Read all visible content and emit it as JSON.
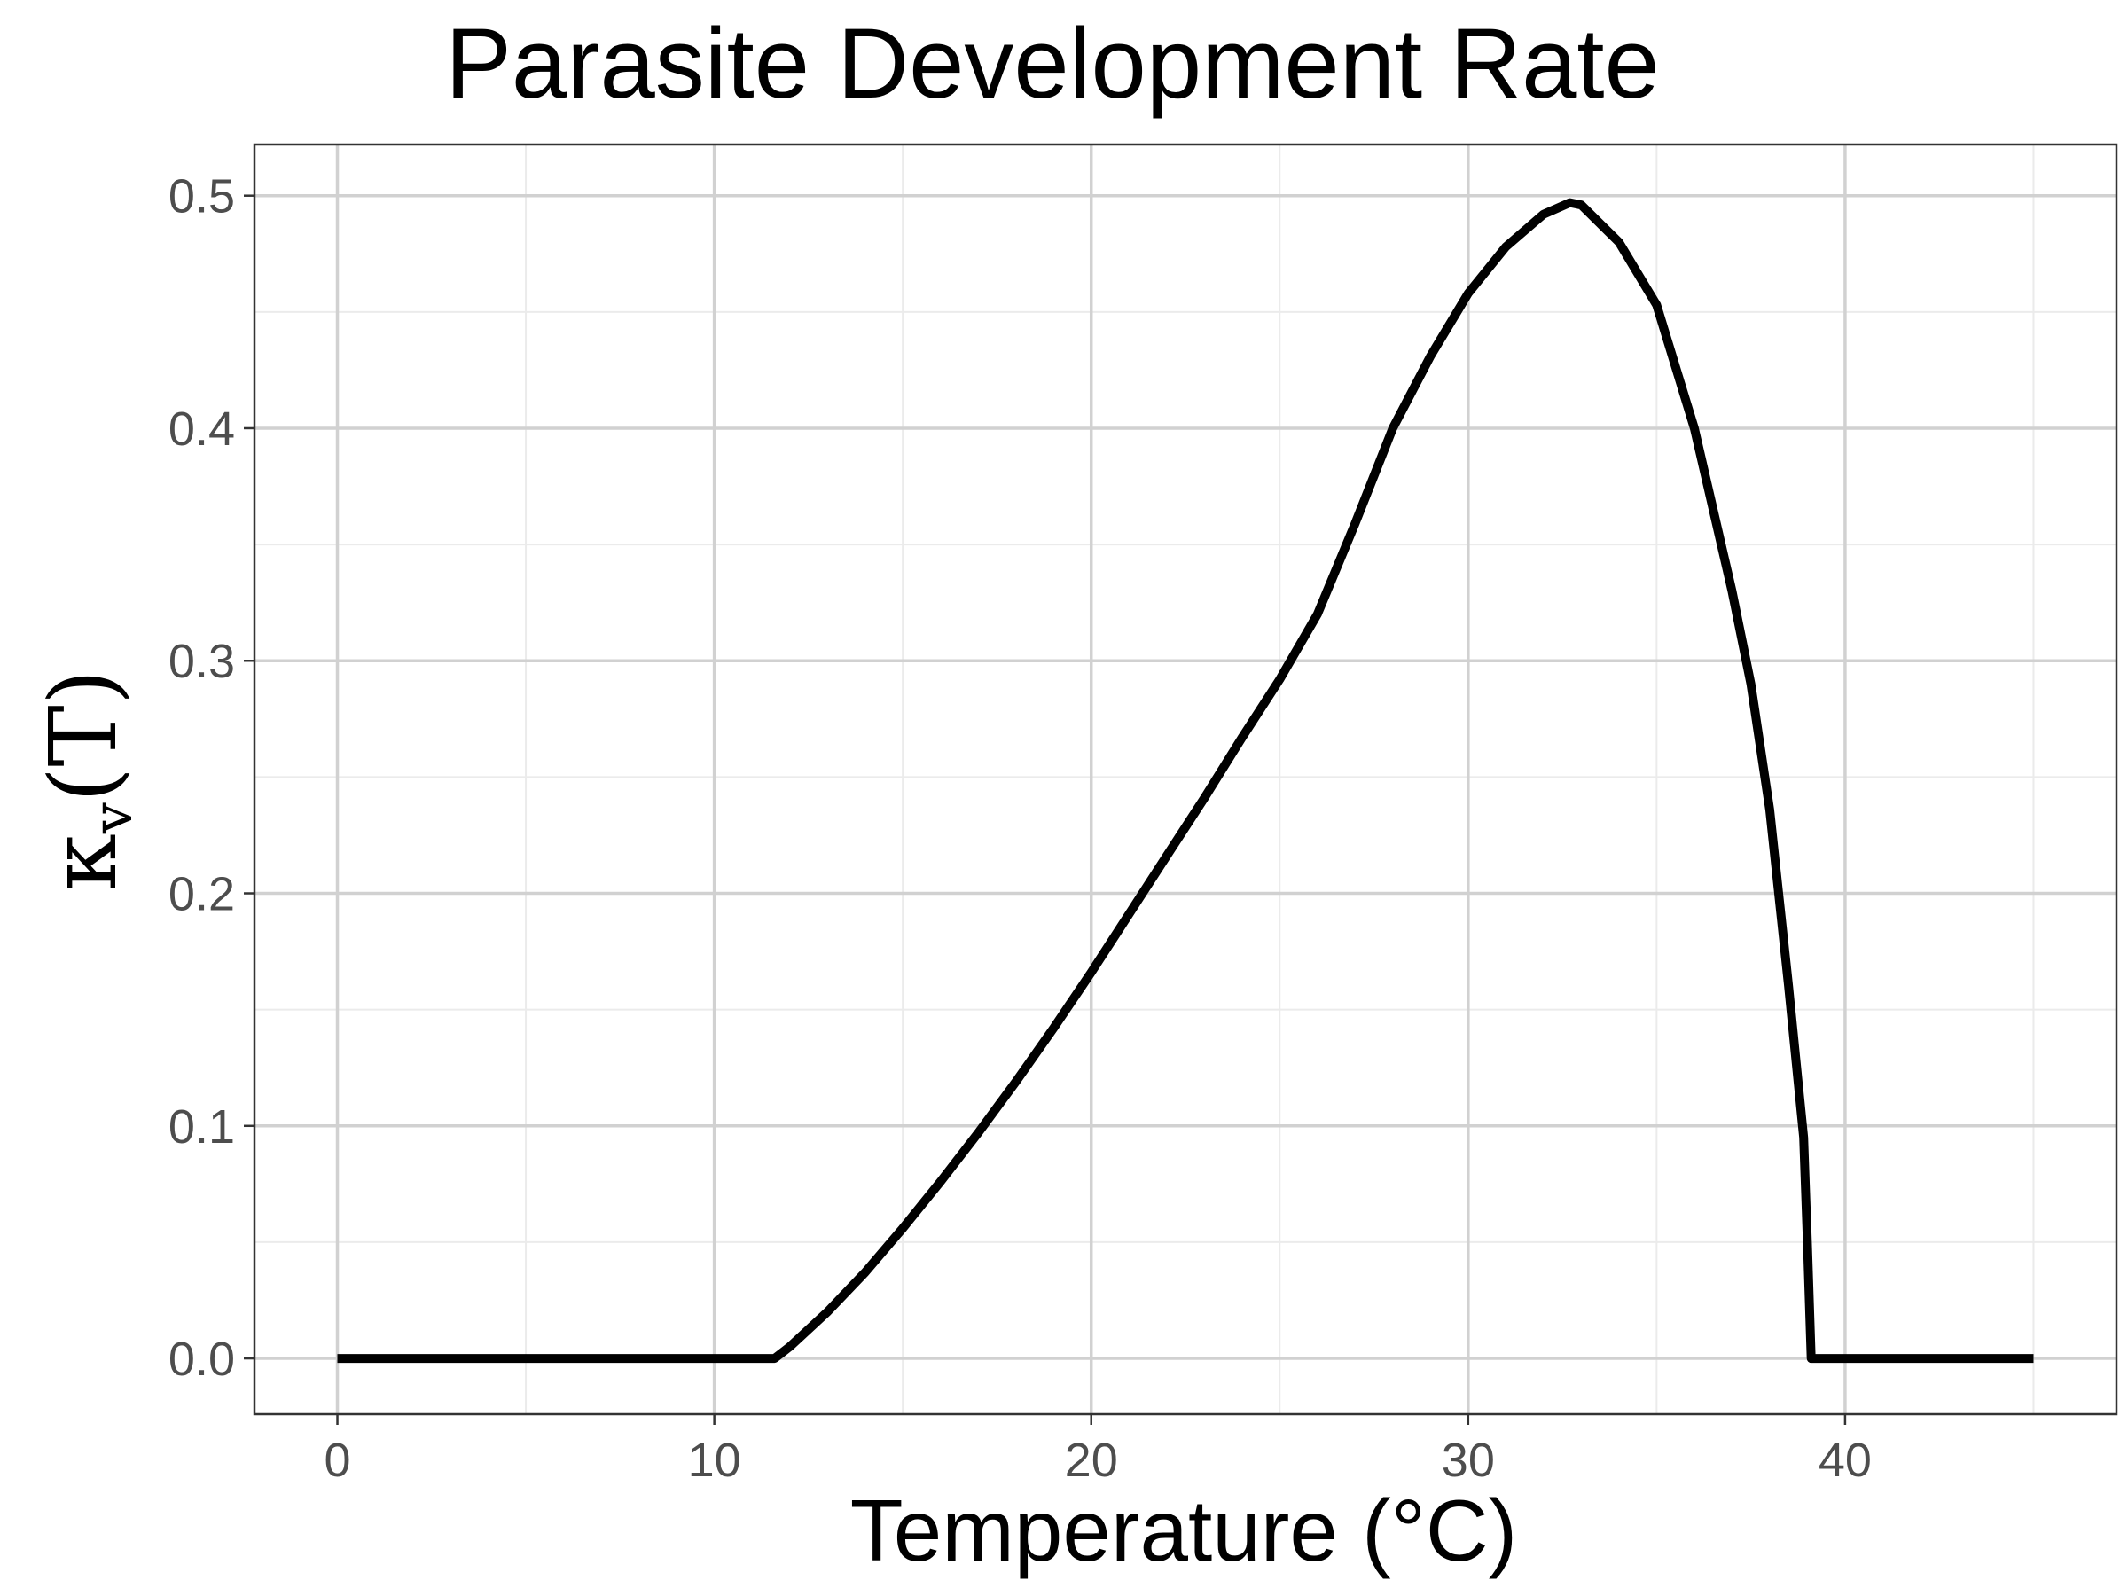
{
  "chart_data": {
    "type": "line",
    "title": "Parasite Development Rate",
    "xlabel": "Temperature (°C)",
    "ylabel": {
      "symbol": "κ",
      "subscript": "v",
      "argument": "(T)"
    },
    "xlim": [
      -2.2,
      47.2
    ],
    "ylim": [
      -0.024,
      0.522
    ],
    "x_ticks": [
      0,
      10,
      20,
      30,
      40
    ],
    "x_tick_labels": [
      "0",
      "10",
      "20",
      "30",
      "40"
    ],
    "x_minor_ticks": [
      5,
      15,
      25,
      35,
      45
    ],
    "y_ticks": [
      0.0,
      0.1,
      0.2,
      0.3,
      0.4,
      0.5
    ],
    "y_tick_labels": [
      "0.0",
      "0.1",
      "0.2",
      "0.3",
      "0.4",
      "0.5"
    ],
    "y_minor_ticks": [
      0.05,
      0.15,
      0.25,
      0.35,
      0.45
    ],
    "grid": true,
    "legend": "none",
    "series": [
      {
        "color": "#000000",
        "x": [
          0,
          5,
          10,
          11.6,
          12,
          13,
          14,
          15,
          16,
          17,
          18,
          19,
          20,
          21,
          22,
          23,
          24,
          25,
          26,
          27,
          28,
          29,
          30,
          31,
          32,
          32.7,
          33,
          34,
          35,
          36,
          37,
          37.5,
          38,
          38.5,
          38.9,
          39.0,
          39.1,
          40,
          45
        ],
        "y": [
          0,
          0,
          0,
          0,
          0.005,
          0.02,
          0.037,
          0.056,
          0.076,
          0.097,
          0.119,
          0.142,
          0.166,
          0.191,
          0.216,
          0.241,
          0.267,
          0.292,
          0.32,
          0.359,
          0.4,
          0.431,
          0.458,
          0.478,
          0.492,
          0.497,
          0.496,
          0.48,
          0.453,
          0.4,
          0.33,
          0.29,
          0.236,
          0.16,
          0.095,
          0.05,
          0,
          0,
          0
        ]
      }
    ]
  }
}
